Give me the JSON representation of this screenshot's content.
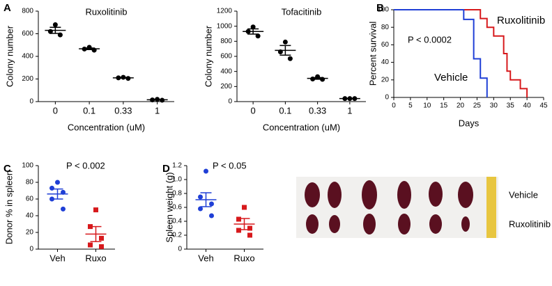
{
  "chart_data": [
    {
      "type": "dot",
      "panel": "A",
      "title": "Ruxolitinib",
      "xlabel": "Concentration (uM)",
      "ylabel": "Colony number",
      "categories": [
        "0",
        "0.1",
        "0.33",
        "1"
      ],
      "points": [
        [
          680,
          620,
          590
        ],
        [
          480,
          465,
          455
        ],
        [
          215,
          210,
          205
        ],
        [
          20,
          15,
          12
        ]
      ],
      "means": [
        630,
        467,
        210,
        16
      ],
      "sem": [
        27,
        7,
        3,
        2
      ],
      "colors": [
        "#000000",
        "#000000",
        "#000000",
        "#000000"
      ],
      "markers": [
        "circle",
        "circle",
        "circle",
        "circle"
      ],
      "ylim": [
        0,
        800
      ],
      "yticks": [
        0,
        200,
        400,
        600,
        800
      ]
    },
    {
      "type": "dot",
      "title": "Tofacitinib",
      "xlabel": "Concentration (uM)",
      "ylabel": "Colony number",
      "categories": [
        "0",
        "0.1",
        "0.33",
        "1"
      ],
      "points": [
        [
          990,
          930,
          870
        ],
        [
          790,
          660,
          570
        ],
        [
          330,
          300,
          295
        ],
        [
          40,
          40,
          40
        ]
      ],
      "means": [
        930,
        680,
        308,
        40
      ],
      "sem": [
        35,
        64,
        11,
        2
      ],
      "colors": [
        "#000000",
        "#000000",
        "#000000",
        "#000000"
      ],
      "markers": [
        "circle",
        "circle",
        "circle",
        "circle"
      ],
      "ylim": [
        0,
        1200
      ],
      "yticks": [
        0,
        200,
        400,
        600,
        800,
        1000,
        1200
      ]
    },
    {
      "type": "line",
      "panel": "B",
      "xlabel": "Days",
      "ylabel": "Percent survival",
      "annotation": "P < 0.0002",
      "series": [
        {
          "name": "Ruxolitinib",
          "color": "#d7191c",
          "x": [
            0,
            26,
            26,
            28,
            28,
            30,
            30,
            33,
            33,
            34,
            34,
            35,
            35,
            38,
            38,
            40,
            40
          ],
          "values": [
            100,
            100,
            90,
            90,
            80,
            80,
            70,
            70,
            50,
            50,
            30,
            30,
            20,
            20,
            10,
            10,
            0
          ]
        },
        {
          "name": "Vehicle",
          "color": "#1f3fd6",
          "x": [
            0,
            21,
            21,
            24,
            24,
            26,
            26,
            28,
            28
          ],
          "values": [
            100,
            100,
            89,
            89,
            44,
            44,
            22,
            22,
            0
          ]
        }
      ],
      "xlim": [
        0,
        45
      ],
      "xticks": [
        0,
        5,
        10,
        15,
        20,
        25,
        30,
        35,
        40,
        45
      ],
      "ylim": [
        0,
        100
      ],
      "yticks": [
        0,
        20,
        40,
        60,
        80,
        100
      ]
    },
    {
      "type": "dot",
      "panel": "C",
      "ylabel": "Donor % in spleen",
      "annotation": "P < 0.002",
      "categories": [
        "Veh",
        "Ruxo"
      ],
      "points": [
        [
          80,
          73,
          68,
          60,
          48
        ],
        [
          47,
          27,
          13,
          5,
          3
        ]
      ],
      "means": [
        66,
        18
      ],
      "sem": [
        6,
        9
      ],
      "colors": [
        "#1f3fd6",
        "#d7191c"
      ],
      "markers": [
        "circle",
        "square"
      ],
      "ylim": [
        0,
        100
      ],
      "yticks": [
        0,
        20,
        40,
        60,
        80,
        100
      ]
    },
    {
      "type": "dot",
      "panel": "D",
      "ylabel": "Spleen weight (g)",
      "annotation": "P < 0.05",
      "categories": [
        "Veh",
        "Ruxo"
      ],
      "points": [
        [
          1.12,
          0.75,
          0.65,
          0.58,
          0.48
        ],
        [
          0.6,
          0.43,
          0.3,
          0.27,
          0.2
        ]
      ],
      "means": [
        0.71,
        0.36
      ],
      "sem": [
        0.1,
        0.08
      ],
      "colors": [
        "#1f3fd6",
        "#d7191c"
      ],
      "markers": [
        "circle",
        "square"
      ],
      "ylim": [
        0,
        1.2
      ],
      "yticks": [
        0,
        0.2,
        0.4,
        0.6,
        0.8,
        {
          "value": 1,
          "label": "1.0"
        },
        1.2
      ]
    }
  ],
  "photo": {
    "labels": [
      "Vehicle",
      "Ruxolitinib"
    ]
  }
}
